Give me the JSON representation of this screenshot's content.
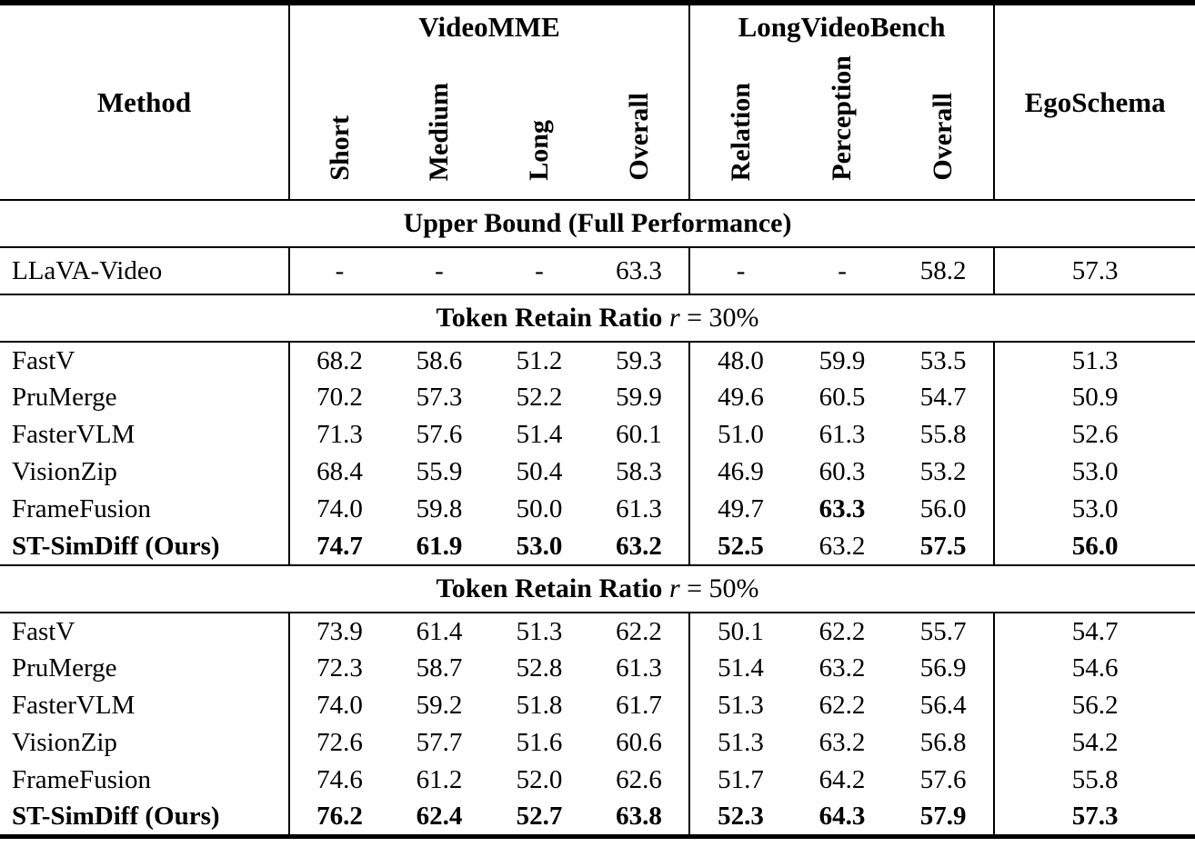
{
  "colors": {
    "text": "#000000",
    "background": "#ffffff",
    "rule": "#000000"
  },
  "table": {
    "header": {
      "method": "Method",
      "groups": [
        {
          "label": "VideoMME",
          "columns": [
            "Short",
            "Medium",
            "Long",
            "Overall"
          ]
        },
        {
          "label": "LongVideoBench",
          "columns": [
            "Relation",
            "Perception",
            "Overall"
          ]
        }
      ],
      "egoschema": "EgoSchema"
    },
    "sections": [
      {
        "title": "Upper Bound (Full Performance)",
        "formula": null,
        "rows": [
          {
            "method": "LLaVA-Video",
            "bold_method": false,
            "values": [
              "-",
              "-",
              "-",
              "63.3",
              "-",
              "-",
              "58.2",
              "57.3"
            ],
            "bold": [
              false,
              false,
              false,
              false,
              false,
              false,
              false,
              false
            ]
          }
        ]
      },
      {
        "title": "Token Retain Ratio",
        "formula": {
          "var": "r",
          "rest": " = 30%"
        },
        "rows": [
          {
            "method": "FastV",
            "bold_method": false,
            "values": [
              "68.2",
              "58.6",
              "51.2",
              "59.3",
              "48.0",
              "59.9",
              "53.5",
              "51.3"
            ],
            "bold": [
              false,
              false,
              false,
              false,
              false,
              false,
              false,
              false
            ]
          },
          {
            "method": "PruMerge",
            "bold_method": false,
            "values": [
              "70.2",
              "57.3",
              "52.2",
              "59.9",
              "49.6",
              "60.5",
              "54.7",
              "50.9"
            ],
            "bold": [
              false,
              false,
              false,
              false,
              false,
              false,
              false,
              false
            ]
          },
          {
            "method": "FasterVLM",
            "bold_method": false,
            "values": [
              "71.3",
              "57.6",
              "51.4",
              "60.1",
              "51.0",
              "61.3",
              "55.8",
              "52.6"
            ],
            "bold": [
              false,
              false,
              false,
              false,
              false,
              false,
              false,
              false
            ]
          },
          {
            "method": "VisionZip",
            "bold_method": false,
            "values": [
              "68.4",
              "55.9",
              "50.4",
              "58.3",
              "46.9",
              "60.3",
              "53.2",
              "53.0"
            ],
            "bold": [
              false,
              false,
              false,
              false,
              false,
              false,
              false,
              false
            ]
          },
          {
            "method": "FrameFusion",
            "bold_method": false,
            "values": [
              "74.0",
              "59.8",
              "50.0",
              "61.3",
              "49.7",
              "63.3",
              "56.0",
              "53.0"
            ],
            "bold": [
              false,
              false,
              false,
              false,
              false,
              true,
              false,
              false
            ]
          },
          {
            "method": "ST-SimDiff (Ours)",
            "bold_method": true,
            "values": [
              "74.7",
              "61.9",
              "53.0",
              "63.2",
              "52.5",
              "63.2",
              "57.5",
              "56.0"
            ],
            "bold": [
              true,
              true,
              true,
              true,
              true,
              false,
              true,
              true
            ]
          }
        ]
      },
      {
        "title": "Token Retain Ratio",
        "formula": {
          "var": "r",
          "rest": " = 50%"
        },
        "rows": [
          {
            "method": "FastV",
            "bold_method": false,
            "values": [
              "73.9",
              "61.4",
              "51.3",
              "62.2",
              "50.1",
              "62.2",
              "55.7",
              "54.7"
            ],
            "bold": [
              false,
              false,
              false,
              false,
              false,
              false,
              false,
              false
            ]
          },
          {
            "method": "PruMerge",
            "bold_method": false,
            "values": [
              "72.3",
              "58.7",
              "52.8",
              "61.3",
              "51.4",
              "63.2",
              "56.9",
              "54.6"
            ],
            "bold": [
              false,
              false,
              false,
              false,
              false,
              false,
              false,
              false
            ]
          },
          {
            "method": "FasterVLM",
            "bold_method": false,
            "values": [
              "74.0",
              "59.2",
              "51.8",
              "61.7",
              "51.3",
              "62.2",
              "56.4",
              "56.2"
            ],
            "bold": [
              false,
              false,
              false,
              false,
              false,
              false,
              false,
              false
            ]
          },
          {
            "method": "VisionZip",
            "bold_method": false,
            "values": [
              "72.6",
              "57.7",
              "51.6",
              "60.6",
              "51.3",
              "63.2",
              "56.8",
              "54.2"
            ],
            "bold": [
              false,
              false,
              false,
              false,
              false,
              false,
              false,
              false
            ]
          },
          {
            "method": "FrameFusion",
            "bold_method": false,
            "values": [
              "74.6",
              "61.2",
              "52.0",
              "62.6",
              "51.7",
              "64.2",
              "57.6",
              "55.8"
            ],
            "bold": [
              false,
              false,
              false,
              false,
              false,
              false,
              false,
              false
            ]
          },
          {
            "method": "ST-SimDiff (Ours)",
            "bold_method": true,
            "values": [
              "76.2",
              "62.4",
              "52.7",
              "63.8",
              "52.3",
              "64.3",
              "57.9",
              "57.3"
            ],
            "bold": [
              true,
              true,
              true,
              true,
              true,
              true,
              true,
              true
            ]
          }
        ]
      }
    ]
  }
}
